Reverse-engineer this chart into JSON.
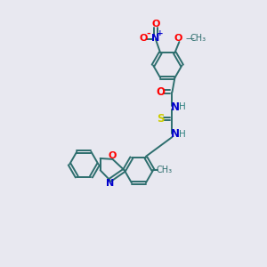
{
  "bg_color": "#e8e8f0",
  "bond_color": "#2d6e6e",
  "atom_colors": {
    "O": "#ff0000",
    "N": "#0000cc",
    "S": "#cccc00",
    "C": "#2d6e6e",
    "H": "#2d8080"
  },
  "figsize": [
    3.0,
    3.0
  ],
  "dpi": 100,
  "ring_r": 0.55,
  "lw": 1.4
}
